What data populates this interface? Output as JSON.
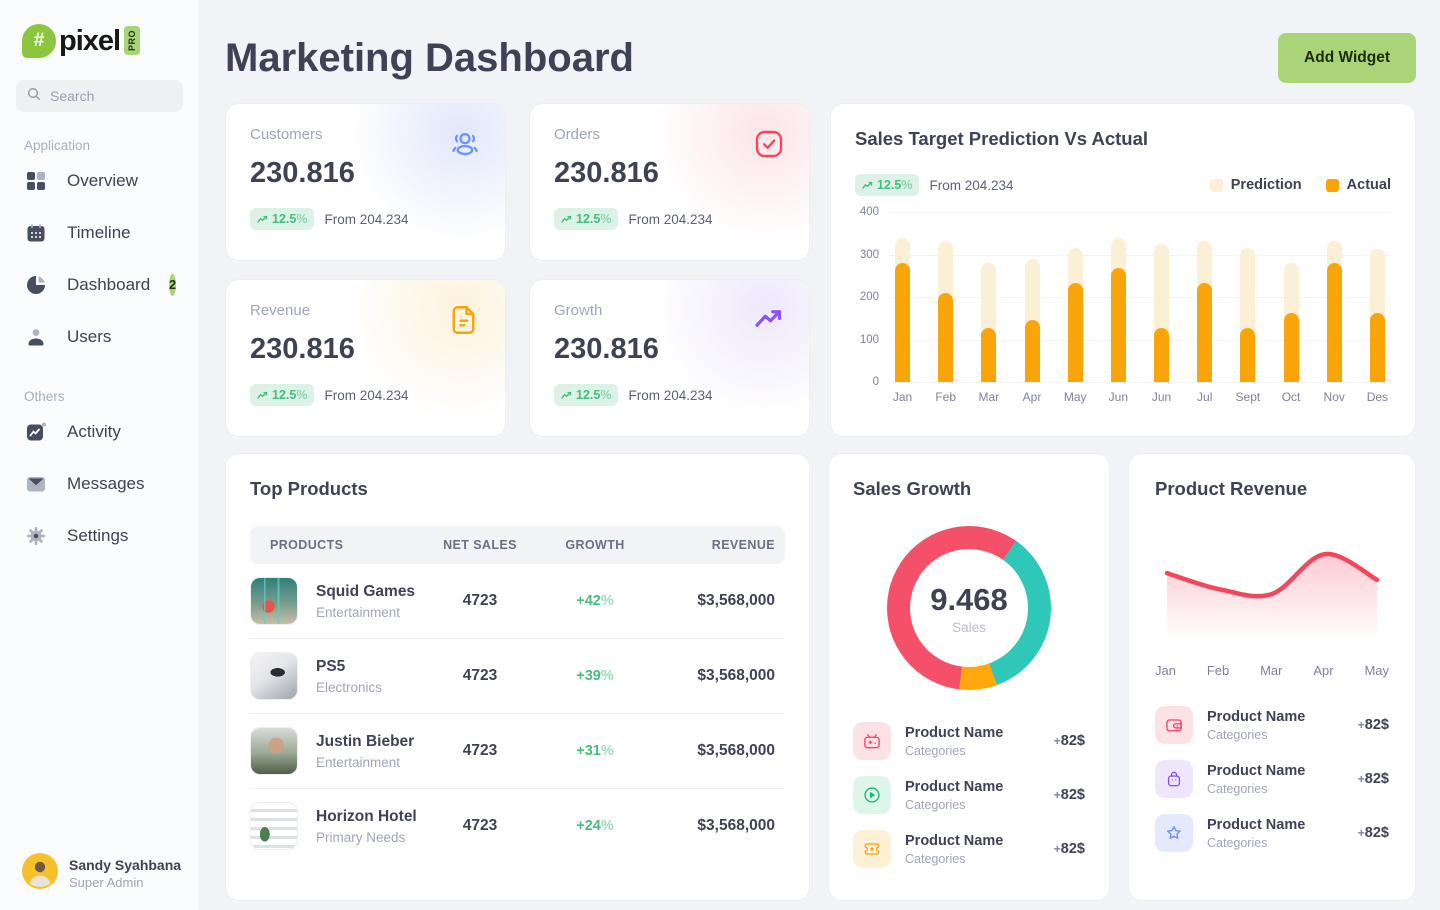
{
  "sidebar": {
    "logo": {
      "hash": "#",
      "name": "pixel",
      "badge": "PRO"
    },
    "search_placeholder": "Search",
    "sections": [
      {
        "label": "Application",
        "items": [
          {
            "label": "Overview",
            "icon": "grid-icon"
          },
          {
            "label": "Timeline",
            "icon": "calendar-icon"
          },
          {
            "label": "Dashboard",
            "icon": "pie-chart-icon",
            "badge": "2"
          },
          {
            "label": "Users",
            "icon": "user-icon"
          }
        ]
      },
      {
        "label": "Others",
        "items": [
          {
            "label": "Activity",
            "icon": "activity-icon"
          },
          {
            "label": "Messages",
            "icon": "mail-icon"
          },
          {
            "label": "Settings",
            "icon": "gear-icon"
          }
        ]
      }
    ],
    "profile": {
      "name": "Sandy Syahbana",
      "role": "Super Admin"
    }
  },
  "header": {
    "title": "Marketing Dashboard",
    "add_widget_label": "Add Widget"
  },
  "stats": [
    {
      "label": "Customers",
      "value": "230.816",
      "delta": "12.5%",
      "from": "From 204.234",
      "icon": "users-icon",
      "accent": "#6993FF",
      "tint": "#E2E8FB"
    },
    {
      "label": "Orders",
      "value": "230.816",
      "delta": "12.5%",
      "from": "From 204.234",
      "icon": "check-icon",
      "accent": "#F1485B",
      "tint": "#FCE5E7"
    },
    {
      "label": "Revenue",
      "value": "230.816",
      "delta": "12.5%",
      "from": "From 204.234",
      "icon": "file-icon",
      "accent": "#F6A50B",
      "tint": "#FDF2DD"
    },
    {
      "label": "Growth",
      "value": "230.816",
      "delta": "12.5%",
      "from": "From 204.234",
      "icon": "trend-up-icon",
      "accent": "#8950FC",
      "tint": "#EEE8FB"
    }
  ],
  "sales_chart": {
    "title": "Sales Target Prediction Vs Actual",
    "delta": "12.5%",
    "from": "From 204.234"
  },
  "top_products": {
    "title": "Top Products",
    "columns": [
      "PRODUCTS",
      "NET SALES",
      "GROWTH",
      "REVENUE"
    ],
    "rows": [
      {
        "name": "Squid Games",
        "category": "Entertainment",
        "net_sales": "4723",
        "growth": "+42%",
        "revenue": "$3,568,000",
        "image": "squid"
      },
      {
        "name": "PS5",
        "category": "Electronics",
        "net_sales": "4723",
        "growth": "+39%",
        "revenue": "$3,568,000",
        "image": "ps5"
      },
      {
        "name": "Justin Bieber",
        "category": "Entertainment",
        "net_sales": "4723",
        "growth": "+31%",
        "revenue": "$3,568,000",
        "image": "bieber"
      },
      {
        "name": "Horizon Hotel",
        "category": "Primary Needs",
        "net_sales": "4723",
        "growth": "+24%",
        "revenue": "$3,568,000",
        "image": "hotel"
      }
    ]
  },
  "sales_growth": {
    "title": "Sales Growth",
    "items": [
      {
        "name": "Product Name",
        "category": "Categories",
        "amount": "+82$",
        "icon": "tv-icon",
        "color": "#F1416C",
        "tint": "#FCE2E4"
      },
      {
        "name": "Product Name",
        "category": "Categories",
        "amount": "+82$",
        "icon": "play-icon",
        "color": "#17B978",
        "tint": "#DEF5EA"
      },
      {
        "name": "Product Name",
        "category": "Categories",
        "amount": "+82$",
        "icon": "ticket-icon",
        "color": "#F6A50B",
        "tint": "#FCF0D7"
      }
    ]
  },
  "product_revenue": {
    "title": "Product Revenue",
    "items": [
      {
        "name": "Product Name",
        "category": "Categories",
        "amount": "+82$",
        "icon": "wallet-icon",
        "color": "#F1416C",
        "tint": "#FCE2E4"
      },
      {
        "name": "Product Name",
        "category": "Categories",
        "amount": "+82$",
        "icon": "bag-icon",
        "color": "#8950FC",
        "tint": "#EEE7FC"
      },
      {
        "name": "Product Name",
        "category": "Categories",
        "amount": "+82$",
        "icon": "star-icon",
        "color": "#6E8BFB",
        "tint": "#E3EAFD"
      }
    ]
  },
  "chart_data": [
    {
      "type": "bar",
      "title": "Sales Target Prediction Vs Actual",
      "categories": [
        "Jan",
        "Feb",
        "Mar",
        "Apr",
        "May",
        "Jun",
        "Jun",
        "Jul",
        "Sept",
        "Oct",
        "Nov",
        "Des"
      ],
      "series": [
        {
          "name": "Prediction",
          "color": "#FBEFD5",
          "values": [
            340,
            332,
            280,
            289,
            315,
            340,
            325,
            332,
            315,
            280,
            332,
            314
          ]
        },
        {
          "name": "Actual",
          "color": "#F9A50A",
          "values": [
            280,
            210,
            127,
            146,
            234,
            268,
            127,
            234,
            127,
            163,
            281,
            163
          ]
        }
      ],
      "ylim": [
        0,
        400
      ],
      "yticks": [
        400,
        300,
        200,
        100,
        0
      ],
      "legend_position": "top-right",
      "grid": true
    },
    {
      "type": "pie",
      "title": "Sales Growth",
      "center_value": "9.468",
      "center_label": "Sales",
      "start_angle_deg": 35,
      "slices": [
        {
          "name": "teal-segment",
          "color": "#2FC7B7",
          "percent": 34.7
        },
        {
          "name": "orange-segment",
          "color": "#FFA70D",
          "percent": 7.5
        },
        {
          "name": "red-segment",
          "color": "#F4506A",
          "percent": 57.8
        }
      ]
    },
    {
      "type": "area",
      "title": "Product Revenue",
      "x": [
        "Jan",
        "Feb",
        "Mar",
        "Apr",
        "May"
      ],
      "values": [
        62,
        45,
        40,
        82,
        55
      ],
      "ylim": [
        0,
        100
      ],
      "color": "#F4455C"
    }
  ]
}
